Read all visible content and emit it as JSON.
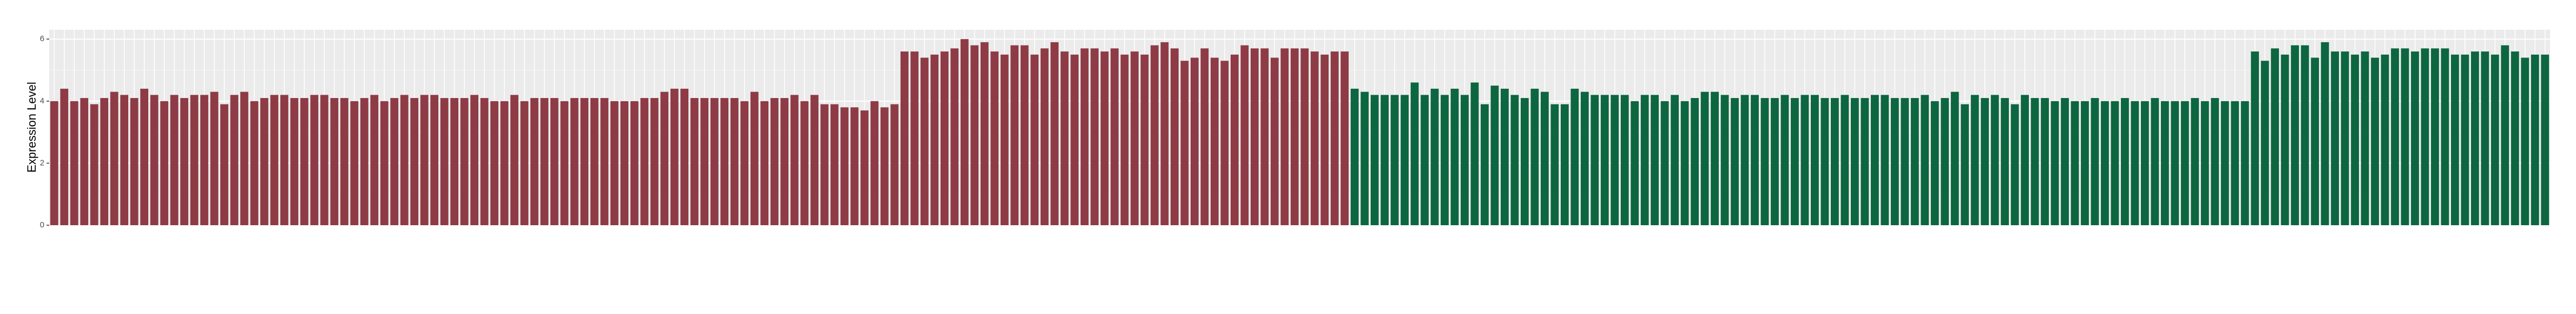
{
  "chart_data": {
    "type": "bar",
    "y_label": "Expression Level",
    "ylim": [
      0,
      6.3
    ],
    "yticks": [
      0,
      2,
      4,
      6
    ],
    "grid": true,
    "series": [
      {
        "color": "#8e3b46",
        "values": [
          4.0,
          4.4,
          4.0,
          4.1,
          3.9,
          4.1,
          4.3,
          4.2,
          4.1,
          4.4,
          4.2,
          4.0,
          4.2,
          4.1,
          4.2,
          4.2,
          4.3,
          3.9,
          4.2,
          4.3,
          4.0,
          4.1,
          4.2,
          4.2,
          4.1,
          4.1,
          4.2,
          4.2,
          4.1,
          4.1,
          4.0,
          4.1,
          4.2,
          4.0,
          4.1,
          4.2,
          4.1,
          4.2,
          4.2,
          4.1,
          4.1,
          4.1,
          4.2,
          4.1,
          4.0,
          4.0,
          4.2,
          4.0,
          4.1,
          4.1,
          4.1,
          4.0,
          4.1,
          4.1,
          4.1,
          4.1,
          4.0,
          4.0,
          4.0,
          4.1,
          4.1,
          4.3,
          4.4,
          4.4,
          4.1,
          4.1,
          4.1,
          4.1,
          4.1,
          4.0,
          4.3,
          4.0,
          4.1,
          4.1,
          4.2,
          4.0,
          4.2,
          3.9,
          3.9,
          3.8,
          3.8,
          3.7,
          4.0,
          3.8,
          3.9,
          5.6,
          5.6,
          5.4,
          5.5,
          5.6,
          5.7,
          6.0,
          5.8,
          5.9,
          5.6,
          5.5,
          5.8,
          5.8,
          5.5,
          5.7,
          5.9,
          5.6,
          5.5,
          5.7,
          5.7,
          5.6,
          5.7,
          5.5,
          5.6,
          5.5,
          5.8,
          5.9,
          5.7,
          5.3,
          5.4,
          5.7,
          5.4,
          5.3,
          5.5,
          5.8,
          5.7,
          5.7,
          5.4,
          5.7,
          5.7,
          5.7,
          5.6,
          5.5,
          5.6,
          5.6
        ]
      },
      {
        "color": "#0c6640",
        "values": [
          4.4,
          4.3,
          4.2,
          4.2,
          4.2,
          4.2,
          4.6,
          4.2,
          4.4,
          4.2,
          4.4,
          4.2,
          4.6,
          3.9,
          4.5,
          4.4,
          4.2,
          4.1,
          4.4,
          4.3,
          3.9,
          3.9,
          4.4,
          4.3,
          4.2,
          4.2,
          4.2,
          4.2,
          4.0,
          4.2,
          4.2,
          4.0,
          4.2,
          4.0,
          4.1,
          4.3,
          4.3,
          4.2,
          4.1,
          4.2,
          4.2,
          4.1,
          4.1,
          4.2,
          4.1,
          4.2,
          4.2,
          4.1,
          4.1,
          4.2,
          4.1,
          4.1,
          4.2,
          4.2,
          4.1,
          4.1,
          4.1,
          4.2,
          4.0,
          4.1,
          4.3,
          3.9,
          4.2,
          4.1,
          4.2,
          4.1,
          3.9,
          4.2,
          4.1,
          4.1,
          4.0,
          4.1,
          4.0,
          4.0,
          4.1,
          4.0,
          4.0,
          4.1,
          4.0,
          4.0,
          4.1,
          4.0,
          4.0,
          4.0,
          4.1,
          4.0,
          4.1,
          4.0,
          4.0,
          4.0,
          5.6,
          5.3,
          5.7,
          5.5,
          5.8,
          5.8,
          5.4,
          5.9,
          5.6,
          5.6,
          5.5,
          5.6,
          5.4,
          5.5,
          5.7,
          5.7,
          5.6,
          5.7,
          5.7,
          5.7,
          5.5,
          5.5,
          5.6,
          5.6,
          5.5,
          5.8,
          5.6,
          5.4,
          5.5,
          5.5
        ]
      }
    ]
  }
}
